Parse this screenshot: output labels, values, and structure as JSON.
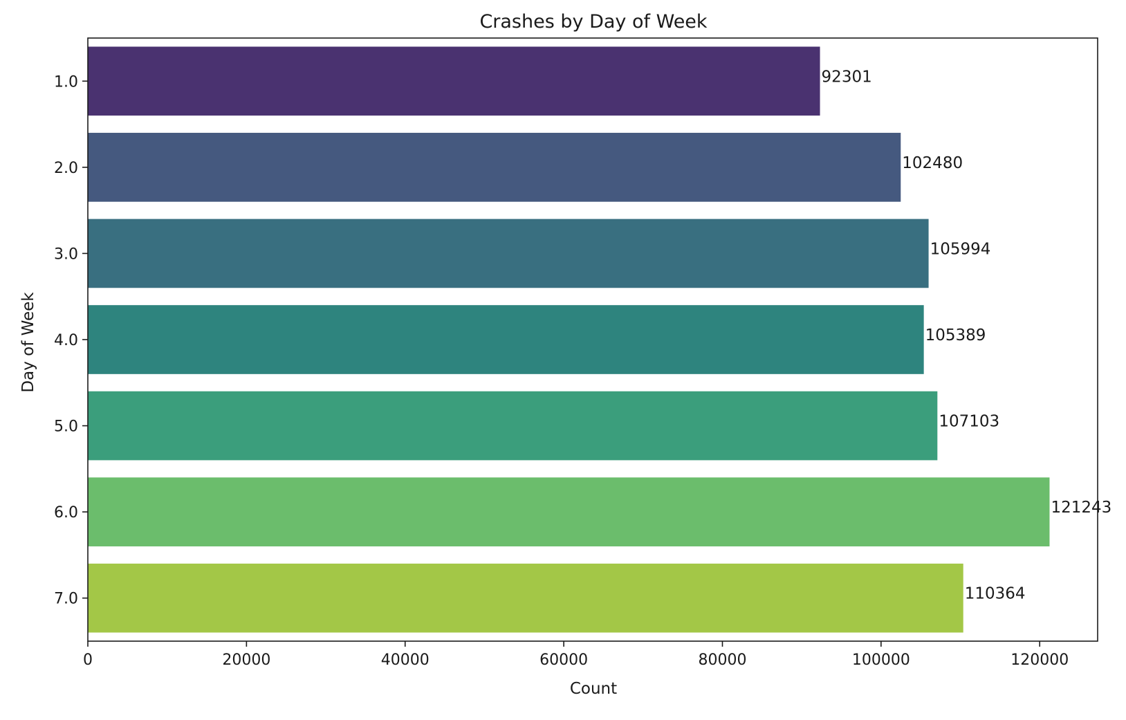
{
  "chart_data": {
    "type": "bar",
    "orientation": "horizontal",
    "title": "Crashes by Day of Week",
    "xlabel": "Count",
    "ylabel": "Day of Week",
    "categories": [
      "1.0",
      "2.0",
      "3.0",
      "4.0",
      "5.0",
      "6.0",
      "7.0"
    ],
    "values": [
      92301,
      102480,
      105994,
      105389,
      107103,
      121243,
      110364
    ],
    "data_labels": [
      "92301",
      "102480",
      "105994",
      "105389",
      "107103",
      "121243",
      "110364"
    ],
    "colors": [
      "#4a3270",
      "#45597f",
      "#396f80",
      "#2e847e",
      "#3b9e7c",
      "#6bbd6c",
      "#a3c747"
    ],
    "xlim": [
      0,
      127305
    ],
    "xticks": [
      0,
      20000,
      40000,
      60000,
      80000,
      100000,
      120000
    ],
    "xtick_labels": [
      "0",
      "20000",
      "40000",
      "60000",
      "80000",
      "100000",
      "120000"
    ],
    "grid": false,
    "legend": "none"
  }
}
